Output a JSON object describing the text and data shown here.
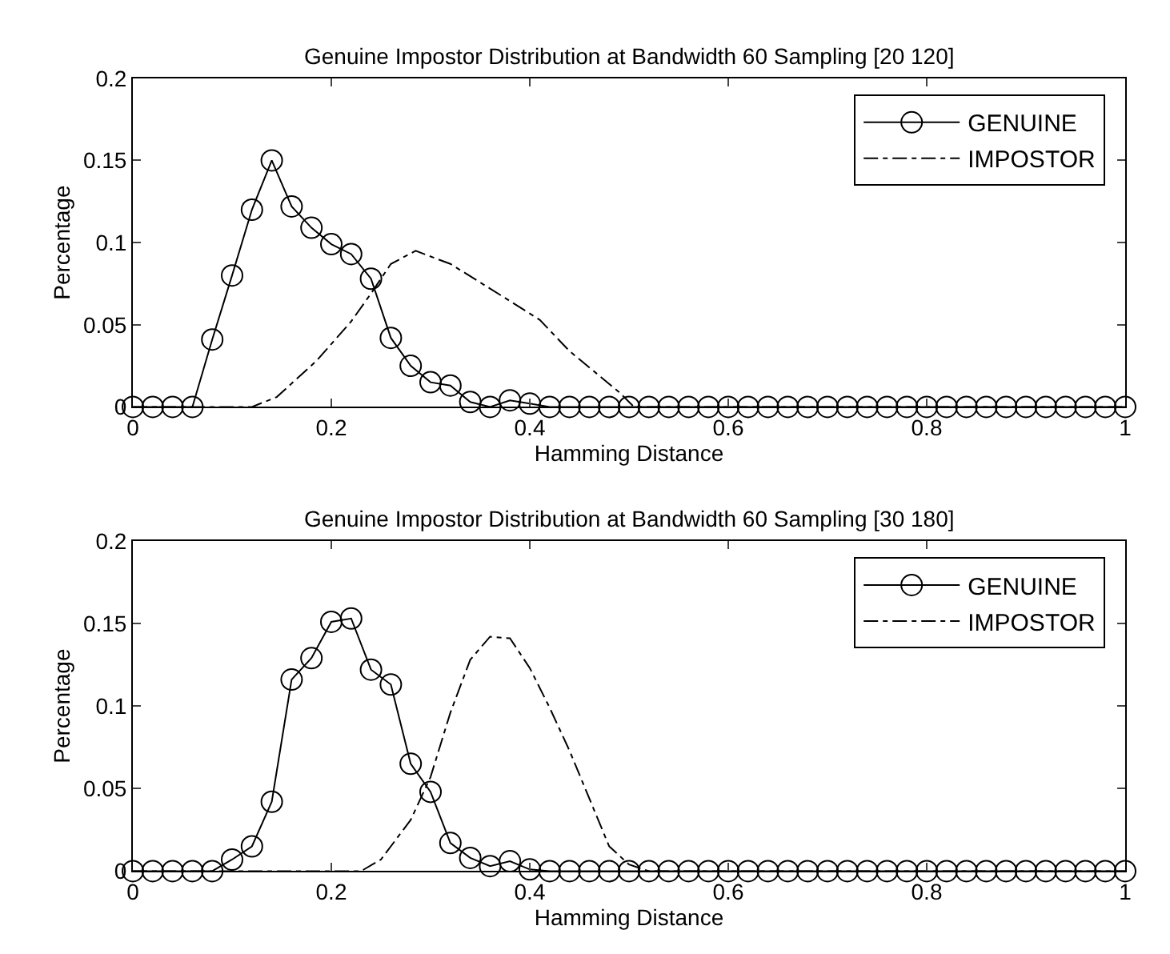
{
  "chart_data": [
    {
      "type": "line",
      "title": "Genuine Impostor Distribution at Bandwidth 60 Sampling [20 120]",
      "xlabel": "Hamming Distance",
      "ylabel": "Percentage",
      "xlim": [
        0,
        1
      ],
      "ylim": [
        0,
        0.2
      ],
      "xticks": [
        0,
        0.2,
        0.4,
        0.6,
        0.8,
        1
      ],
      "yticks": [
        0,
        0.05,
        0.1,
        0.15,
        0.2
      ],
      "grid": false,
      "legend": "top right",
      "series": [
        {
          "name": "GENUINE",
          "color": "#000000",
          "marker": "circle",
          "line_style": "solid",
          "x": [
            0,
            0.02,
            0.04,
            0.06,
            0.08,
            0.1,
            0.12,
            0.14,
            0.16,
            0.18,
            0.2,
            0.22,
            0.24,
            0.26,
            0.28,
            0.3,
            0.32,
            0.34,
            0.36,
            0.38,
            0.4,
            0.42,
            0.44,
            0.46,
            0.48,
            0.5,
            0.52,
            0.54,
            0.56,
            0.58,
            0.6,
            0.62,
            0.64,
            0.66,
            0.68,
            0.7,
            0.72,
            0.74,
            0.76,
            0.78,
            0.8,
            0.82,
            0.84,
            0.86,
            0.88,
            0.9,
            0.92,
            0.94,
            0.96,
            0.98,
            1
          ],
          "values": [
            0,
            0,
            0,
            0,
            0.041,
            0.08,
            0.12,
            0.15,
            0.122,
            0.109,
            0.099,
            0.093,
            0.078,
            0.042,
            0.025,
            0.015,
            0.013,
            0.003,
            0,
            0.004,
            0.002,
            0,
            0,
            0,
            0,
            0,
            0,
            0,
            0,
            0,
            0,
            0,
            0,
            0,
            0,
            0,
            0,
            0,
            0,
            0,
            0,
            0,
            0,
            0,
            0,
            0,
            0,
            0,
            0,
            0,
            0
          ]
        },
        {
          "name": "IMPOSTOR",
          "color": "#000000",
          "marker": "none",
          "line_style": "dashdot",
          "x": [
            0,
            0.12,
            0.145,
            0.185,
            0.22,
            0.24,
            0.26,
            0.285,
            0.32,
            0.36,
            0.41,
            0.44,
            0.49,
            0.505,
            1
          ],
          "values": [
            0,
            0,
            0.006,
            0.028,
            0.052,
            0.069,
            0.087,
            0.095,
            0.087,
            0.072,
            0.053,
            0.034,
            0.009,
            0,
            0
          ]
        }
      ]
    },
    {
      "type": "line",
      "title": "Genuine Impostor Distribution at Bandwidth 60 Sampling [30 180]",
      "xlabel": "Hamming Distance",
      "ylabel": "Percentage",
      "xlim": [
        0,
        1
      ],
      "ylim": [
        0,
        0.2
      ],
      "xticks": [
        0,
        0.2,
        0.4,
        0.6,
        0.8,
        1
      ],
      "yticks": [
        0,
        0.05,
        0.1,
        0.15,
        0.2
      ],
      "grid": false,
      "legend": "top right",
      "series": [
        {
          "name": "GENUINE",
          "color": "#000000",
          "marker": "circle",
          "line_style": "solid",
          "x": [
            0,
            0.02,
            0.04,
            0.06,
            0.08,
            0.1,
            0.12,
            0.14,
            0.16,
            0.18,
            0.2,
            0.22,
            0.24,
            0.26,
            0.28,
            0.3,
            0.32,
            0.34,
            0.36,
            0.38,
            0.4,
            0.42,
            0.44,
            0.46,
            0.48,
            0.5,
            0.52,
            0.54,
            0.56,
            0.58,
            0.6,
            0.62,
            0.64,
            0.66,
            0.68,
            0.7,
            0.72,
            0.74,
            0.76,
            0.78,
            0.8,
            0.82,
            0.84,
            0.86,
            0.88,
            0.9,
            0.92,
            0.94,
            0.96,
            0.98,
            1
          ],
          "values": [
            0,
            0,
            0,
            0,
            0,
            0.007,
            0.015,
            0.042,
            0.116,
            0.129,
            0.151,
            0.153,
            0.122,
            0.113,
            0.065,
            0.048,
            0.017,
            0.008,
            0.003,
            0.006,
            0.001,
            0,
            0,
            0,
            0,
            0,
            0,
            0,
            0,
            0,
            0,
            0,
            0,
            0,
            0,
            0,
            0,
            0,
            0,
            0,
            0,
            0,
            0,
            0,
            0,
            0,
            0,
            0,
            0,
            0,
            0
          ]
        },
        {
          "name": "IMPOSTOR",
          "color": "#000000",
          "marker": "none",
          "line_style": "dashdot",
          "x": [
            0,
            0.23,
            0.25,
            0.28,
            0.3,
            0.32,
            0.34,
            0.36,
            0.38,
            0.4,
            0.42,
            0.44,
            0.46,
            0.48,
            0.5,
            0.52,
            1
          ],
          "values": [
            0,
            0,
            0.007,
            0.031,
            0.057,
            0.096,
            0.128,
            0.142,
            0.141,
            0.123,
            0.099,
            0.073,
            0.044,
            0.015,
            0.004,
            0,
            0
          ]
        }
      ]
    }
  ]
}
